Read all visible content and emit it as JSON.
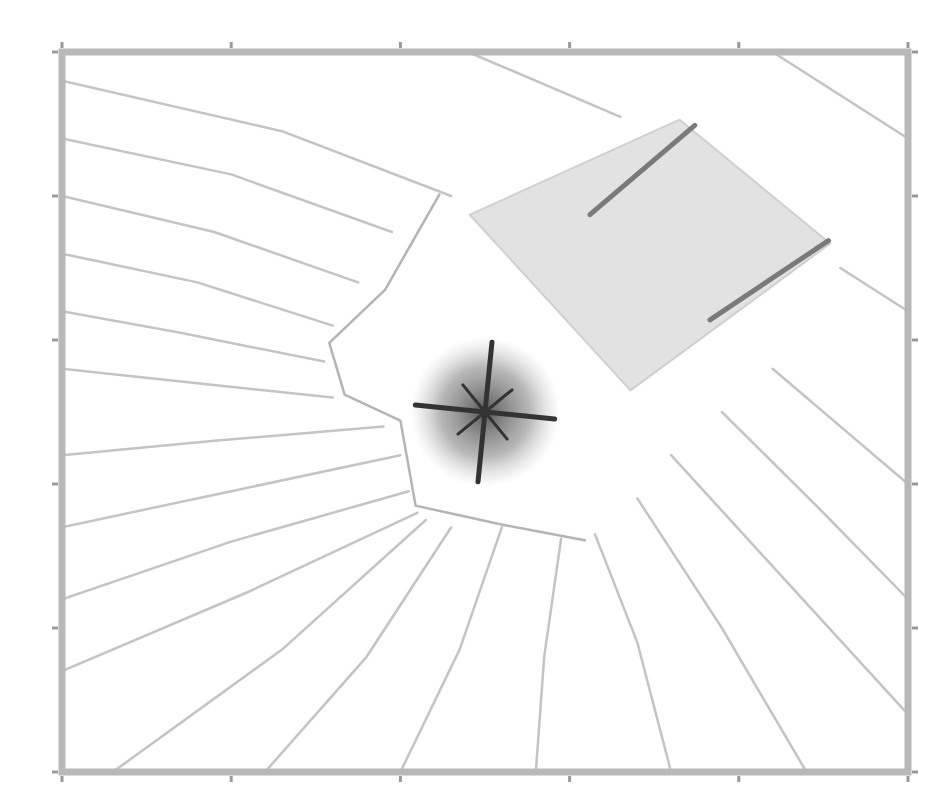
{
  "chart_data": {
    "type": "contour",
    "xlim": [
      0,
      5
    ],
    "ylim": [
      0,
      5
    ],
    "xticks": [
      0,
      1,
      2,
      3,
      4,
      5
    ],
    "yticks": [
      0,
      1,
      2,
      3,
      4,
      5
    ],
    "tick_labels": false,
    "grid": false,
    "color": "#c4c4c4",
    "series": [
      {
        "type": "polygon",
        "color": "#e2e2e2",
        "x": [
          2.41,
          3.65,
          4.54,
          3.36
        ],
        "y": [
          3.87,
          4.53,
          3.67,
          2.65
        ]
      },
      {
        "type": "line",
        "color": "#7a7a7a",
        "x": [
          3.12,
          3.74
        ],
        "y": [
          3.87,
          4.49
        ]
      },
      {
        "type": "line",
        "color": "#7a7a7a",
        "x": [
          3.83,
          4.53
        ],
        "y": [
          3.14,
          3.69
        ]
      },
      {
        "type": "line",
        "color": "#b4b4b4",
        "x": [
          2.23,
          1.91,
          1.58,
          1.67,
          2.0,
          2.09,
          2.59,
          3.09
        ],
        "y": [
          4.01,
          3.35,
          2.98,
          2.62,
          2.44,
          1.85,
          1.72,
          1.61
        ]
      },
      {
        "type": "line",
        "x": [
          0,
          1.3,
          2.3
        ],
        "y": [
          4.8,
          4.45,
          4.0
        ]
      },
      {
        "type": "line",
        "x": [
          0,
          1.0,
          1.95
        ],
        "y": [
          4.4,
          4.15,
          3.75
        ]
      },
      {
        "type": "line",
        "x": [
          0,
          0.9,
          1.75
        ],
        "y": [
          4.0,
          3.75,
          3.4
        ]
      },
      {
        "type": "line",
        "x": [
          0,
          0.8,
          1.6
        ],
        "y": [
          3.6,
          3.4,
          3.1
        ]
      },
      {
        "type": "line",
        "x": [
          0,
          0.7,
          1.55
        ],
        "y": [
          3.2,
          3.05,
          2.85
        ]
      },
      {
        "type": "line",
        "x": [
          0,
          0.8,
          1.6
        ],
        "y": [
          2.8,
          2.7,
          2.6
        ]
      },
      {
        "type": "line",
        "x": [
          0,
          0.9,
          1.9
        ],
        "y": [
          2.2,
          2.3,
          2.4
        ]
      },
      {
        "type": "line",
        "x": [
          0,
          1.0,
          2.0
        ],
        "y": [
          1.7,
          1.95,
          2.2
        ]
      },
      {
        "type": "line",
        "x": [
          0,
          1.0,
          2.05
        ],
        "y": [
          1.2,
          1.6,
          1.95
        ]
      },
      {
        "type": "line",
        "x": [
          0,
          1.1,
          2.1
        ],
        "y": [
          0.7,
          1.25,
          1.8
        ]
      },
      {
        "type": "line",
        "x": [
          0.3,
          1.3,
          2.15
        ],
        "y": [
          0,
          0.85,
          1.75
        ]
      },
      {
        "type": "line",
        "x": [
          1.2,
          1.8,
          2.3
        ],
        "y": [
          0,
          0.8,
          1.7
        ]
      },
      {
        "type": "line",
        "x": [
          2.0,
          2.35,
          2.6
        ],
        "y": [
          0,
          0.85,
          1.7
        ]
      },
      {
        "type": "line",
        "x": [
          2.8,
          2.85,
          2.95
        ],
        "y": [
          0,
          0.8,
          1.62
        ]
      },
      {
        "type": "line",
        "x": [
          3.6,
          3.4,
          3.15
        ],
        "y": [
          0,
          0.9,
          1.65
        ]
      },
      {
        "type": "line",
        "x": [
          4.4,
          3.9,
          3.4
        ],
        "y": [
          0,
          1.0,
          1.9
        ]
      },
      {
        "type": "line",
        "x": [
          5,
          4.3,
          3.6
        ],
        "y": [
          0.4,
          1.3,
          2.2
        ]
      },
      {
        "type": "line",
        "x": [
          5,
          4.5,
          3.9
        ],
        "y": [
          1.2,
          1.8,
          2.5
        ]
      },
      {
        "type": "line",
        "x": [
          5,
          4.6,
          4.2
        ],
        "y": [
          2.0,
          2.4,
          2.8
        ]
      },
      {
        "type": "line",
        "x": [
          2.4,
          3.3
        ],
        "y": [
          5,
          4.55
        ]
      },
      {
        "type": "line",
        "x": [
          4.2,
          5
        ],
        "y": [
          5,
          4.4
        ]
      },
      {
        "type": "line",
        "x": [
          4.6,
          5
        ],
        "y": [
          3.5,
          3.2
        ]
      },
      {
        "type": "scatter",
        "marker": "star",
        "color": "#333333",
        "x": [
          2.5
        ],
        "y": [
          2.5
        ]
      }
    ]
  }
}
